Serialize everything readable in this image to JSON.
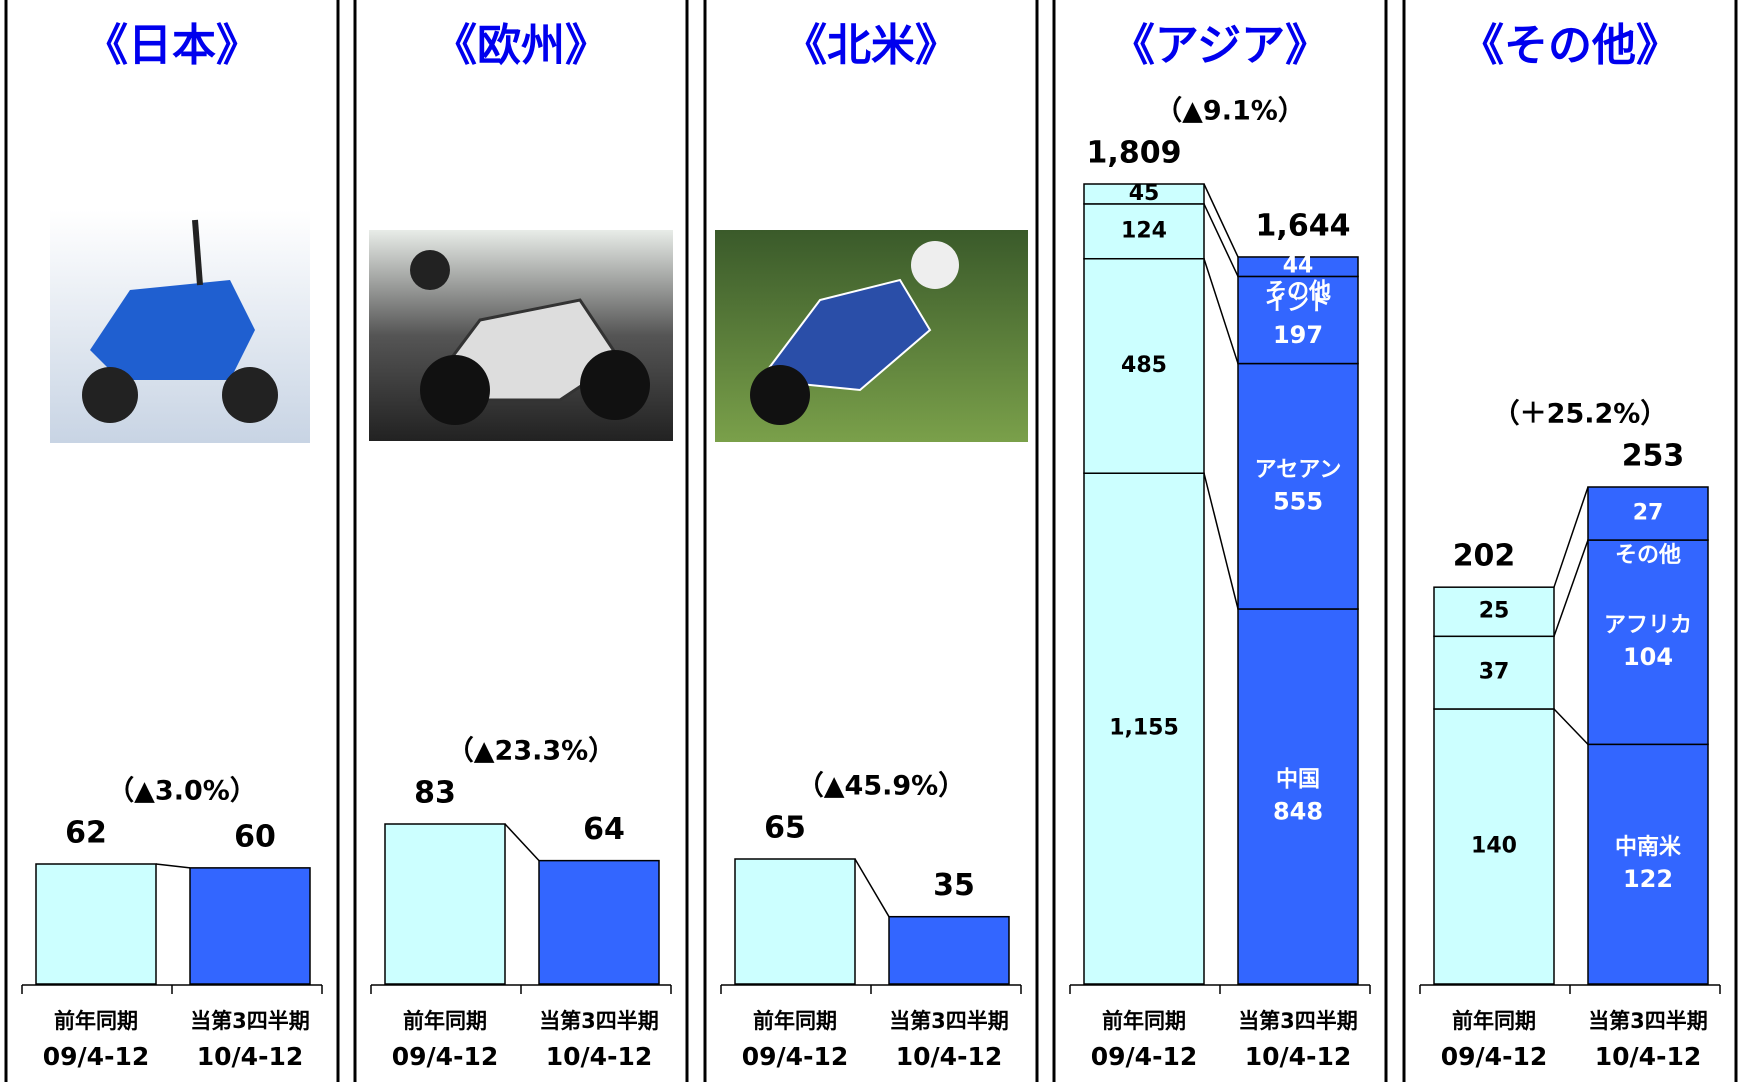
{
  "chart_data": [
    {
      "type": "stacked_bar",
      "title": "《日本》",
      "change_label": "（▲3.0%）",
      "categories": [
        [
          "前年同期",
          "09/4-12"
        ],
        [
          "当第3四半期",
          "10/4-12"
        ]
      ],
      "colors": [
        "#ccffff",
        "#3366ff"
      ],
      "series": [
        {
          "values": [
            62,
            60
          ]
        }
      ]
    },
    {
      "type": "stacked_bar",
      "title": "《欧州》",
      "change_label": "（▲23.3%）",
      "categories": [
        [
          "前年同期",
          "09/4-12"
        ],
        [
          "当第3四半期",
          "10/4-12"
        ]
      ],
      "colors": [
        "#ccffff",
        "#3366ff"
      ],
      "series": [
        {
          "values": [
            83,
            64
          ]
        }
      ]
    },
    {
      "type": "stacked_bar",
      "title": "《北米》",
      "change_label": "（▲45.9%）",
      "categories": [
        [
          "前年同期",
          "09/4-12"
        ],
        [
          "当第3四半期",
          "10/4-12"
        ]
      ],
      "colors": [
        "#ccffff",
        "#3366ff"
      ],
      "series": [
        {
          "values": [
            65,
            35
          ]
        }
      ]
    },
    {
      "type": "stacked_bar",
      "title": "《アジア》",
      "change_label": "（▲9.1%）",
      "categories": [
        [
          "前年同期",
          "09/4-12"
        ],
        [
          "当第3四半期",
          "10/4-12"
        ]
      ],
      "colors": [
        "#ccffff",
        "#3366ff"
      ],
      "totals": [
        1809,
        1644
      ],
      "total_labels": [
        "1,809",
        "1,644"
      ],
      "series": [
        {
          "name": "中国",
          "values": [
            1155,
            848
          ],
          "value_labels": [
            "1,155",
            "848"
          ]
        },
        {
          "name": "アセアン",
          "values": [
            485,
            555
          ]
        },
        {
          "name": "インド",
          "values": [
            124,
            197
          ]
        },
        {
          "name": "その他",
          "values": [
            45,
            44
          ]
        }
      ]
    },
    {
      "type": "stacked_bar",
      "title": "《その他》",
      "change_label": "（＋25.2%）",
      "categories": [
        [
          "前年同期",
          "09/4-12"
        ],
        [
          "当第3四半期",
          "10/4-12"
        ]
      ],
      "colors": [
        "#ccffff",
        "#3366ff"
      ],
      "totals": [
        202,
        253
      ],
      "series": [
        {
          "name": "中南米",
          "values": [
            140,
            122
          ]
        },
        {
          "name": "アフリカ",
          "values": [
            37,
            104
          ]
        },
        {
          "name": "その他",
          "values": [
            25,
            27
          ]
        }
      ]
    }
  ]
}
